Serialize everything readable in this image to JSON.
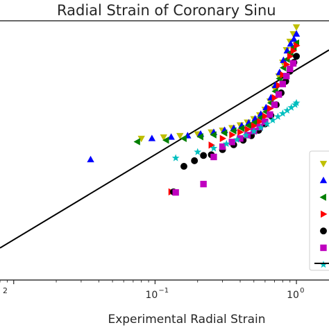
{
  "chart_data": {
    "type": "scatter",
    "title": "Radial Strain of Coronary Sinu",
    "xlabel": "Experimental Radial Strain",
    "ylabel": "",
    "xscale": "log",
    "yscale": "log",
    "xlim": [
      0.008,
      1.7
    ],
    "ylim": [
      0.04,
      1.25
    ],
    "xticks": [
      {
        "value": 0.1,
        "base": "10",
        "exp": "−1"
      },
      {
        "value": 1.0,
        "base": "10",
        "exp": "0"
      }
    ],
    "edge_tick_label": "2",
    "grid": false,
    "legend": {
      "placement": "right"
    },
    "reference_line": {
      "label": "",
      "color": "#000000",
      "points": [
        [
          0.008,
          0.0612
        ],
        [
          1.7,
          0.848
        ]
      ]
    },
    "series": [
      {
        "marker": "triangle-down",
        "color": "#bfbf00",
        "points": [
          [
            0.08,
            0.262
          ],
          [
            0.115,
            0.267
          ],
          [
            0.15,
            0.272
          ],
          [
            0.2,
            0.278
          ],
          [
            0.25,
            0.285
          ],
          [
            0.3,
            0.292
          ],
          [
            0.35,
            0.302
          ],
          [
            0.4,
            0.313
          ],
          [
            0.45,
            0.325
          ],
          [
            0.5,
            0.34
          ],
          [
            0.55,
            0.358
          ],
          [
            0.6,
            0.385
          ],
          [
            0.65,
            0.43
          ],
          [
            0.7,
            0.51
          ],
          [
            0.75,
            0.6
          ],
          [
            0.8,
            0.72
          ],
          [
            0.85,
            0.85
          ],
          [
            0.9,
            0.95
          ],
          [
            0.95,
            1.05
          ],
          [
            1.0,
            1.15
          ]
        ]
      },
      {
        "marker": "triangle-up",
        "color": "#0000ff",
        "points": [
          [
            0.035,
            0.198
          ],
          [
            0.095,
            0.262
          ],
          [
            0.13,
            0.267
          ],
          [
            0.17,
            0.272
          ],
          [
            0.21,
            0.278
          ],
          [
            0.26,
            0.284
          ],
          [
            0.31,
            0.292
          ],
          [
            0.36,
            0.3
          ],
          [
            0.41,
            0.31
          ],
          [
            0.46,
            0.323
          ],
          [
            0.51,
            0.34
          ],
          [
            0.56,
            0.362
          ],
          [
            0.61,
            0.395
          ],
          [
            0.66,
            0.45
          ],
          [
            0.71,
            0.53
          ],
          [
            0.76,
            0.63
          ],
          [
            0.81,
            0.74
          ],
          [
            0.86,
            0.84
          ],
          [
            0.91,
            0.92
          ],
          [
            0.96,
            0.98
          ],
          [
            1.0,
            1.05
          ]
        ]
      },
      {
        "marker": "triangle-left",
        "color": "#007f00",
        "points": [
          [
            0.075,
            0.251
          ],
          [
            0.12,
            0.256
          ],
          [
            0.16,
            0.262
          ],
          [
            0.21,
            0.268
          ],
          [
            0.26,
            0.275
          ],
          [
            0.31,
            0.282
          ],
          [
            0.36,
            0.29
          ],
          [
            0.41,
            0.3
          ],
          [
            0.46,
            0.311
          ],
          [
            0.51,
            0.325
          ],
          [
            0.56,
            0.345
          ],
          [
            0.61,
            0.373
          ],
          [
            0.66,
            0.42
          ],
          [
            0.71,
            0.49
          ],
          [
            0.76,
            0.58
          ],
          [
            0.81,
            0.67
          ],
          [
            0.86,
            0.75
          ],
          [
            0.91,
            0.82
          ],
          [
            0.96,
            0.88
          ],
          [
            1.0,
            0.93
          ]
        ]
      },
      {
        "marker": "triangle-right",
        "color": "#ff0000",
        "points": [
          [
            0.13,
            0.129
          ],
          [
            0.25,
            0.24
          ],
          [
            0.3,
            0.262
          ],
          [
            0.35,
            0.275
          ],
          [
            0.4,
            0.285
          ],
          [
            0.45,
            0.296
          ],
          [
            0.5,
            0.31
          ],
          [
            0.55,
            0.328
          ],
          [
            0.6,
            0.352
          ],
          [
            0.65,
            0.39
          ],
          [
            0.7,
            0.45
          ],
          [
            0.75,
            0.53
          ],
          [
            0.8,
            0.61
          ],
          [
            0.85,
            0.7
          ],
          [
            0.9,
            0.78
          ],
          [
            0.95,
            0.84
          ],
          [
            1.0,
            0.9
          ]
        ]
      },
      {
        "marker": "circle",
        "color": "#000000",
        "points": [
          [
            0.135,
            0.129
          ],
          [
            0.16,
            0.181
          ],
          [
            0.19,
            0.195
          ],
          [
            0.22,
            0.209
          ],
          [
            0.25,
            0.211
          ],
          [
            0.3,
            0.226
          ],
          [
            0.36,
            0.241
          ],
          [
            0.42,
            0.256
          ],
          [
            0.48,
            0.272
          ],
          [
            0.54,
            0.292
          ],
          [
            0.6,
            0.318
          ],
          [
            0.66,
            0.355
          ],
          [
            0.72,
            0.41
          ],
          [
            0.78,
            0.48
          ],
          [
            0.84,
            0.56
          ],
          [
            0.9,
            0.64
          ],
          [
            0.96,
            0.72
          ],
          [
            1.0,
            0.78
          ]
        ]
      },
      {
        "marker": "square",
        "color": "#bf00bf",
        "points": [
          [
            0.14,
            0.128
          ],
          [
            0.22,
            0.143
          ],
          [
            0.26,
            0.205
          ],
          [
            0.3,
            0.235
          ],
          [
            0.35,
            0.25
          ],
          [
            0.4,
            0.262
          ],
          [
            0.45,
            0.274
          ],
          [
            0.5,
            0.289
          ],
          [
            0.55,
            0.305
          ],
          [
            0.6,
            0.327
          ],
          [
            0.65,
            0.36
          ],
          [
            0.7,
            0.41
          ],
          [
            0.75,
            0.47
          ],
          [
            0.8,
            0.54
          ],
          [
            0.85,
            0.6
          ],
          [
            0.9,
            0.66
          ],
          [
            0.95,
            0.71
          ]
        ]
      },
      {
        "marker": "star",
        "color": "#00bfbf",
        "points": [
          [
            0.14,
            0.202
          ],
          [
            0.2,
            0.219
          ],
          [
            0.26,
            0.23
          ],
          [
            0.32,
            0.244
          ],
          [
            0.38,
            0.258
          ],
          [
            0.44,
            0.273
          ],
          [
            0.5,
            0.288
          ],
          [
            0.56,
            0.302
          ],
          [
            0.62,
            0.318
          ],
          [
            0.68,
            0.334
          ],
          [
            0.74,
            0.35
          ],
          [
            0.8,
            0.365
          ],
          [
            0.86,
            0.38
          ],
          [
            0.92,
            0.395
          ],
          [
            0.98,
            0.41
          ],
          [
            1.0,
            0.42
          ]
        ]
      }
    ]
  }
}
